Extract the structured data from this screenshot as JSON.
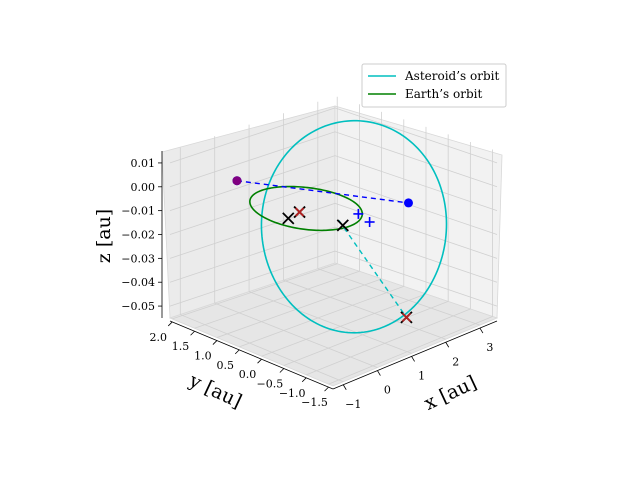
{
  "chart_data": {
    "type": "line",
    "projection": "3d",
    "axes": {
      "x": {
        "label": "x [au]",
        "range": [
          -1.3,
          3.5
        ],
        "ticks": [
          -1,
          0,
          1,
          2,
          3
        ],
        "tick_labels": [
          "−1",
          "0",
          "1",
          "2",
          "3"
        ]
      },
      "y": {
        "label": "y [au]",
        "range": [
          -1.6,
          2.05
        ],
        "ticks": [
          2.0,
          1.5,
          1.0,
          0.5,
          0.0,
          -0.5,
          -1.0,
          -1.5
        ],
        "tick_labels": [
          "2.0",
          "1.5",
          "1.0",
          "0.5",
          "0.0",
          "−0.5",
          "−1.0",
          "−1.5"
        ]
      },
      "z": {
        "label": "z [au]",
        "range": [
          -0.055,
          0.015
        ],
        "ticks": [
          0.01,
          0.0,
          -0.01,
          -0.02,
          -0.03,
          -0.04,
          -0.05
        ],
        "tick_labels": [
          "0.01",
          "0.00",
          "−0.01",
          "−0.02",
          "−0.03",
          "−0.04",
          "−0.05"
        ]
      }
    },
    "grid": true,
    "legend": {
      "placement": "top-right",
      "entries": [
        "Asteroid’s orbit",
        "Earth’s orbit"
      ]
    },
    "series": [
      {
        "name": "Asteroid’s orbit",
        "color": "#00bfbf",
        "kind": "ellipse_orbit",
        "center": [
          1.4,
          0.0
        ],
        "semi_axes": [
          1.8,
          1.55
        ],
        "inclination_z": 0.03,
        "z_offset": -0.015
      },
      {
        "name": "Earth’s orbit",
        "color": "#008000",
        "kind": "circle_orbit",
        "center": [
          0.0,
          0.0
        ],
        "radius": 1.0,
        "z": 0.0
      }
    ],
    "lines": [
      {
        "style": "dashed",
        "color": "#0000ff",
        "points": [
          [
            0.0,
            1.55,
            0.0
          ],
          [
            2.6,
            -0.3,
            -0.01
          ]
        ]
      },
      {
        "style": "dashed",
        "color": "#00bfbf",
        "points": [
          [
            -0.15,
            -0.85,
            0.002
          ],
          [
            0.85,
            -1.6,
            -0.039
          ]
        ]
      }
    ],
    "markers": [
      {
        "symbol": "circle",
        "color": "#0000ff",
        "position": [
          0.0,
          1.55,
          0.0
        ]
      },
      {
        "symbol": "circle",
        "color": "#0000ff",
        "position": [
          2.6,
          -0.3,
          -0.01
        ]
      },
      {
        "symbol": "circle",
        "color": "#800080",
        "position": [
          0.0,
          1.55,
          0.0
        ]
      },
      {
        "symbol": "plus",
        "color": "#0000ff",
        "position": [
          0.55,
          -0.75,
          0.0
        ]
      },
      {
        "symbol": "plus",
        "color": "#0000ff",
        "position": [
          1.4,
          -0.35,
          -0.011
        ]
      },
      {
        "symbol": "x",
        "color": "#000000",
        "position": [
          -0.65,
          -0.1,
          0.0
        ]
      },
      {
        "symbol": "x",
        "color": "#000000",
        "position": [
          -0.1,
          -0.9,
          0.0
        ]
      },
      {
        "symbol": "x",
        "color": "#000000",
        "position": [
          0.85,
          0.8,
          -0.012
        ]
      },
      {
        "symbol": "x",
        "color": "#000000",
        "position": [
          0.85,
          -1.6,
          -0.039
        ]
      },
      {
        "symbol": "x",
        "color": "#b22222",
        "position": [
          0.85,
          0.8,
          -0.012
        ]
      },
      {
        "symbol": "x",
        "color": "#b22222",
        "position": [
          0.85,
          -1.6,
          -0.039
        ]
      }
    ]
  }
}
